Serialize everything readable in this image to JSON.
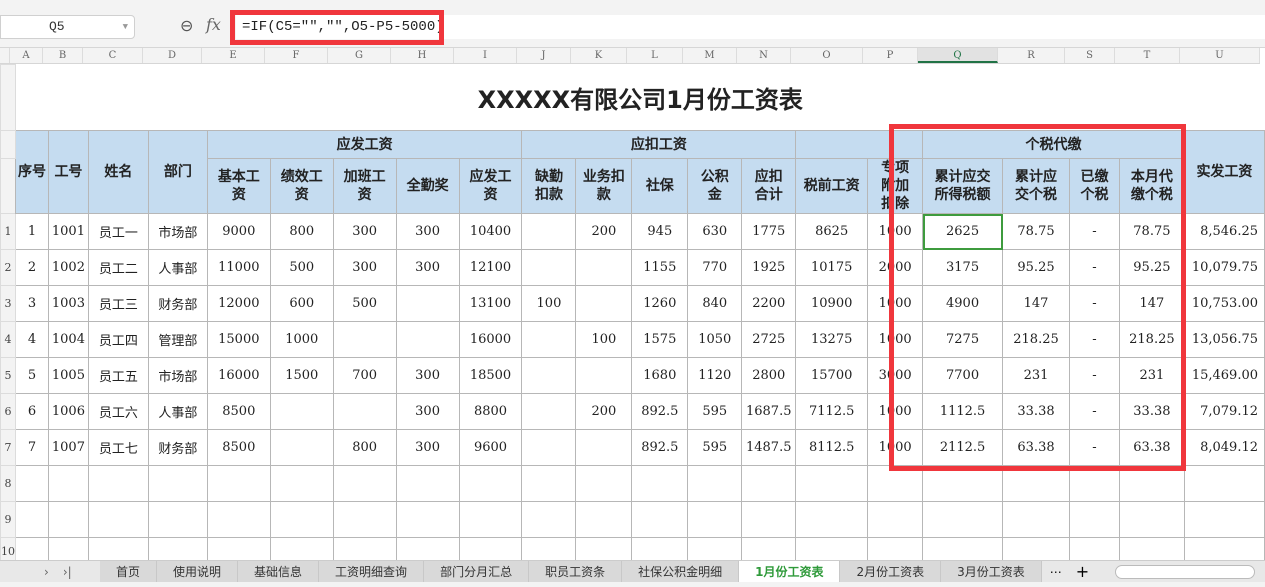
{
  "namebox": "Q5",
  "formula": "=IF(C5=\"\",\"\",O5-P5-5000)",
  "columns": [
    "A",
    "B",
    "C",
    "D",
    "E",
    "F",
    "G",
    "H",
    "I",
    "J",
    "K",
    "L",
    "M",
    "N",
    "O",
    "P",
    "Q",
    "R",
    "S",
    "T",
    "U"
  ],
  "selected_column": "Q",
  "title": "XXXXX有限公司1月份工资表",
  "group_headers": {
    "pay": "应发工资",
    "deduct": "应扣工资",
    "tax": "个税代缴"
  },
  "headers": [
    "序号",
    "工号",
    "姓名",
    "部门",
    "基本工资",
    "绩效工资",
    "加班工资",
    "全勤奖",
    "应发工资",
    "缺勤扣款",
    "业务扣款",
    "社保",
    "公积金",
    "应扣合计",
    "税前工资",
    "专项附加扣除",
    "累计应交所得税额",
    "累计应交个税",
    "已缴个税",
    "本月代缴个税",
    "实发工资"
  ],
  "rows": [
    [
      "1",
      "1001",
      "员工一",
      "市场部",
      "9000",
      "800",
      "300",
      "300",
      "10400",
      "",
      "200",
      "945",
      "630",
      "1775",
      "8625",
      "1000",
      "2625",
      "78.75",
      "-",
      "78.75",
      "8,546.25"
    ],
    [
      "2",
      "1002",
      "员工二",
      "人事部",
      "11000",
      "500",
      "300",
      "300",
      "12100",
      "",
      "",
      "1155",
      "770",
      "1925",
      "10175",
      "2000",
      "3175",
      "95.25",
      "-",
      "95.25",
      "10,079.75"
    ],
    [
      "3",
      "1003",
      "员工三",
      "财务部",
      "12000",
      "600",
      "500",
      "",
      "13100",
      "100",
      "",
      "1260",
      "840",
      "2200",
      "10900",
      "1000",
      "4900",
      "147",
      "-",
      "147",
      "10,753.00"
    ],
    [
      "4",
      "1004",
      "员工四",
      "管理部",
      "15000",
      "1000",
      "",
      "",
      "16000",
      "",
      "100",
      "1575",
      "1050",
      "2725",
      "13275",
      "1000",
      "7275",
      "218.25",
      "-",
      "218.25",
      "13,056.75"
    ],
    [
      "5",
      "1005",
      "员工五",
      "市场部",
      "16000",
      "1500",
      "700",
      "300",
      "18500",
      "",
      "",
      "1680",
      "1120",
      "2800",
      "15700",
      "3000",
      "7700",
      "231",
      "-",
      "231",
      "15,469.00"
    ],
    [
      "6",
      "1006",
      "员工六",
      "人事部",
      "8500",
      "",
      "",
      "300",
      "8800",
      "",
      "200",
      "892.5",
      "595",
      "1687.5",
      "7112.5",
      "1000",
      "1112.5",
      "33.38",
      "-",
      "33.38",
      "7,079.12"
    ],
    [
      "7",
      "1007",
      "员工七",
      "财务部",
      "8500",
      "",
      "800",
      "300",
      "9600",
      "",
      "",
      "892.5",
      "595",
      "1487.5",
      "8112.5",
      "1000",
      "2112.5",
      "63.38",
      "-",
      "63.38",
      "8,049.12"
    ]
  ],
  "empty_rows": [
    "8",
    "9",
    "10"
  ],
  "sheet_tabs": [
    "首页",
    "使用说明",
    "基础信息",
    "工资明细查询",
    "部门分月汇总",
    "职员工资条",
    "社保公积金明细",
    "1月份工资表",
    "2月份工资表",
    "3月份工资表"
  ],
  "active_tab": "1月份工资表",
  "colors": {
    "header_bg": "#c5dcf0",
    "highlight": "#f0363c",
    "selection": "#3e9b3e"
  }
}
